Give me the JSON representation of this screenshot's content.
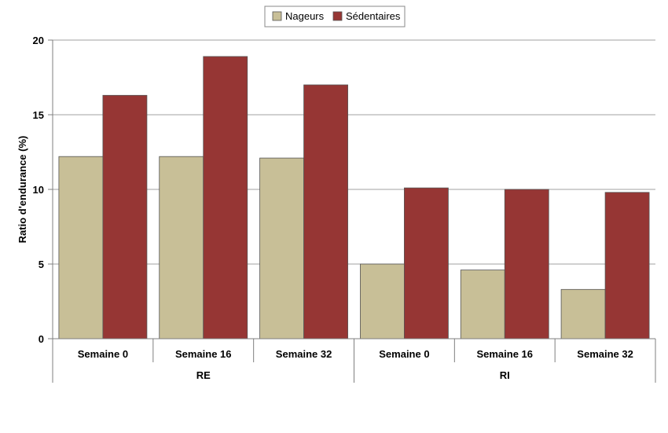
{
  "chart_data": {
    "type": "bar",
    "title": "",
    "ylabel": "Ratio d'endurance (%)",
    "xlabel": "",
    "ylim": [
      0,
      20
    ],
    "yticks": [
      0,
      5,
      10,
      15,
      20
    ],
    "grid": true,
    "legend_position": "top-center",
    "groups": [
      {
        "label": "RE",
        "categories": [
          "Semaine 0",
          "Semaine 16",
          "Semaine 32"
        ]
      },
      {
        "label": "RI",
        "categories": [
          "Semaine 0",
          "Semaine 16",
          "Semaine 32"
        ]
      }
    ],
    "categories": [
      "Semaine 0",
      "Semaine 16",
      "Semaine 32",
      "Semaine 0",
      "Semaine 16",
      "Semaine 32"
    ],
    "series": [
      {
        "name": "Nageurs",
        "color": "#c8bf97",
        "values": [
          12.2,
          12.2,
          12.1,
          5.0,
          4.6,
          3.3
        ]
      },
      {
        "name": "Sédentaires",
        "color": "#963634",
        "values": [
          16.3,
          18.9,
          17.0,
          10.1,
          10.0,
          9.8
        ]
      }
    ]
  }
}
